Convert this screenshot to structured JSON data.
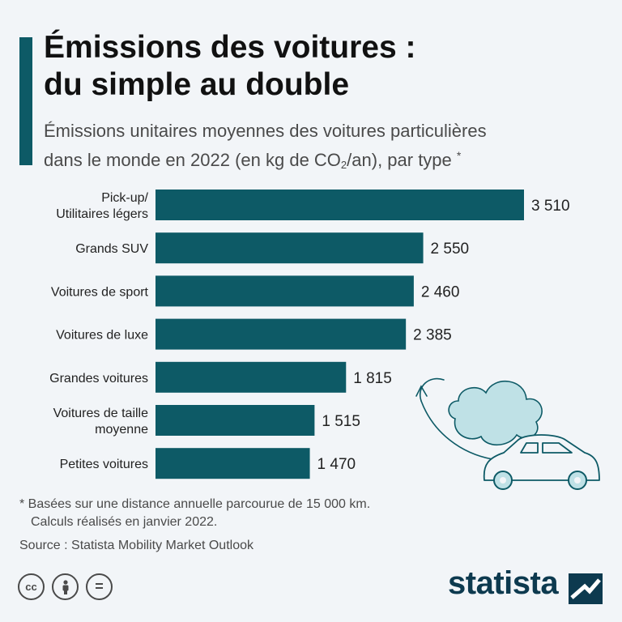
{
  "title_lines": [
    "Émissions des voitures :",
    "du simple au double"
  ],
  "subtitle": {
    "line1": "Émissions unitaires moyennes des voitures particulières",
    "line2_before": "dans le monde en 2022 (en kg de CO",
    "line2_sub": "2",
    "line2_after": "/an), par type",
    "marker": "*"
  },
  "chart_data": {
    "type": "bar",
    "orientation": "horizontal",
    "categories": [
      [
        "Pick-up/",
        "Utilitaires légers"
      ],
      [
        "Grands SUV"
      ],
      [
        "Voitures de sport"
      ],
      [
        "Voitures de luxe"
      ],
      [
        "Grandes voitures"
      ],
      [
        "Voitures de taille",
        "moyenne"
      ],
      [
        "Petites voitures"
      ]
    ],
    "values": [
      3510,
      2550,
      2460,
      2385,
      1815,
      1515,
      1470
    ],
    "value_labels": [
      "3 510",
      "2 550",
      "2 460",
      "2 385",
      "1 815",
      "1 515",
      "1 470"
    ],
    "xlim": [
      0,
      3510
    ],
    "unit": "kg de CO2/an",
    "grid": false,
    "legend": "none"
  },
  "footnote_lines": [
    "* Basées sur une distance annuelle parcourue de 15 000 km.",
    "Calculs réalisés en janvier 2022."
  ],
  "source": "Source : Statista Mobility Market Outlook",
  "license_icons": [
    {
      "name": "creative-commons",
      "glyph": "cc"
    },
    {
      "name": "attribution",
      "glyph": ""
    },
    {
      "name": "no-derivatives",
      "glyph": "="
    }
  ],
  "brand": "statista",
  "colors": {
    "bar": "#0d5a66",
    "accent": "#0d5a66",
    "background": "#f2f5f8",
    "cloud": "#bfe1e6",
    "outline": "#0d5a66",
    "brand": "#0d3a4f"
  }
}
